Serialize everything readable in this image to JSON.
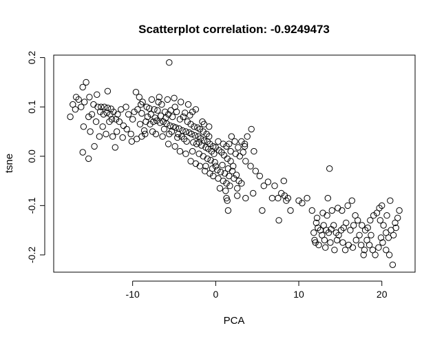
{
  "chart_data": {
    "type": "scatter",
    "title": "Scatterplot correlation: -0.9249473",
    "xlabel": "PCA",
    "ylabel": "tsne",
    "xlim": [
      -19.5,
      24.0
    ],
    "ylim": [
      -0.235,
      0.205
    ],
    "x_ticks": [
      -10,
      0,
      10,
      20
    ],
    "x_tick_labels": [
      "-10",
      "0",
      "10",
      "20"
    ],
    "y_ticks": [
      -0.2,
      -0.1,
      0.0,
      0.1,
      0.2
    ],
    "y_tick_labels": [
      "-0.2",
      "-0.1",
      "0.0",
      "0.1",
      "0.2"
    ],
    "marker": "open-circle",
    "grid": false,
    "legend": "none",
    "points": [
      [
        -5.6,
        0.19
      ],
      [
        -13.0,
        0.132
      ],
      [
        -9.6,
        0.13
      ],
      [
        -15.6,
        0.15
      ],
      [
        -16.0,
        0.14
      ],
      [
        -16.8,
        0.12
      ],
      [
        -15.2,
        0.12
      ],
      [
        -15.8,
        0.11
      ],
      [
        -16.5,
        0.115
      ],
      [
        -14.3,
        0.125
      ],
      [
        -17.2,
        0.105
      ],
      [
        -17.5,
        0.08
      ],
      [
        -16.9,
        0.095
      ],
      [
        -16.2,
        0.1
      ],
      [
        -14.7,
        0.105
      ],
      [
        -14.2,
        0.1
      ],
      [
        -13.8,
        0.1
      ],
      [
        -13.4,
        0.1
      ],
      [
        -13.0,
        0.098
      ],
      [
        -12.6,
        0.096
      ],
      [
        -13.9,
        0.09
      ],
      [
        -13.5,
        0.085
      ],
      [
        -13.1,
        0.088
      ],
      [
        -12.7,
        0.085
      ],
      [
        -12.3,
        0.09
      ],
      [
        -14.9,
        0.085
      ],
      [
        -15.3,
        0.08
      ],
      [
        -14.4,
        0.07
      ],
      [
        -13.6,
        0.06
      ],
      [
        -12.8,
        0.07
      ],
      [
        -12.0,
        0.075
      ],
      [
        -11.6,
        0.07
      ],
      [
        -11.1,
        0.062
      ],
      [
        -10.7,
        0.055
      ],
      [
        -10.2,
        0.045
      ],
      [
        -11.9,
        0.05
      ],
      [
        -12.4,
        0.04
      ],
      [
        -13.2,
        0.045
      ],
      [
        -14.0,
        0.04
      ],
      [
        -15.9,
        0.06
      ],
      [
        -15.1,
        0.05
      ],
      [
        -14.6,
        0.02
      ],
      [
        -15.3,
        -0.005
      ],
      [
        -16.0,
        0.008
      ],
      [
        -12.1,
        0.018
      ],
      [
        -11.2,
        0.038
      ],
      [
        -10.1,
        0.03
      ],
      [
        -9.5,
        0.035
      ],
      [
        -8.9,
        0.04
      ],
      [
        -8.6,
        0.052
      ],
      [
        -9.1,
        0.065
      ],
      [
        -8.4,
        0.07
      ],
      [
        -7.9,
        0.065
      ],
      [
        -7.5,
        0.07
      ],
      [
        -7.1,
        0.072
      ],
      [
        -6.7,
        0.068
      ],
      [
        -6.3,
        0.07
      ],
      [
        -5.9,
        0.066
      ],
      [
        -5.5,
        0.062
      ],
      [
        -5.1,
        0.06
      ],
      [
        -4.8,
        0.058
      ],
      [
        -4.4,
        0.056
      ],
      [
        -4.0,
        0.052
      ],
      [
        -3.6,
        0.05
      ],
      [
        -3.2,
        0.048
      ],
      [
        -2.9,
        0.045
      ],
      [
        -2.5,
        0.042
      ],
      [
        -2.1,
        0.04
      ],
      [
        -1.8,
        0.036
      ],
      [
        -1.4,
        0.032
      ],
      [
        -1.0,
        0.03
      ],
      [
        -0.7,
        0.025
      ],
      [
        -0.3,
        0.02
      ],
      [
        0.0,
        0.018
      ],
      [
        0.4,
        0.012
      ],
      [
        0.7,
        0.008
      ],
      [
        1.0,
        0.002
      ],
      [
        1.4,
        -0.005
      ],
      [
        1.8,
        -0.01
      ],
      [
        2.1,
        -0.02
      ],
      [
        -9.2,
        0.12
      ],
      [
        -8.8,
        0.11
      ],
      [
        -8.3,
        0.1
      ],
      [
        -7.4,
        0.095
      ],
      [
        -6.9,
        0.11
      ],
      [
        -6.5,
        0.105
      ],
      [
        -6.1,
        0.09
      ],
      [
        -5.7,
        0.085
      ],
      [
        -5.2,
        0.08
      ],
      [
        -4.7,
        0.09
      ],
      [
        -4.3,
        0.075
      ],
      [
        -3.9,
        0.08
      ],
      [
        -3.4,
        0.07
      ],
      [
        -3.0,
        0.065
      ],
      [
        -2.6,
        0.06
      ],
      [
        -2.2,
        0.058
      ],
      [
        -1.9,
        0.055
      ],
      [
        -1.5,
        0.05
      ],
      [
        -1.1,
        0.045
      ],
      [
        -0.8,
        0.04
      ],
      [
        -4.9,
        0.1
      ],
      [
        -5.8,
        0.115
      ],
      [
        -4.2,
        0.11
      ],
      [
        -3.3,
        0.105
      ],
      [
        -2.8,
        0.09
      ],
      [
        -2.4,
        0.095
      ],
      [
        -1.6,
        0.07
      ],
      [
        -7.7,
        0.115
      ],
      [
        -6.8,
        0.12
      ],
      [
        -5.0,
        0.118
      ],
      [
        -10.5,
        0.085
      ],
      [
        -10.0,
        0.075
      ],
      [
        -9.8,
        0.09
      ],
      [
        -9.4,
        0.095
      ],
      [
        -8.9,
        0.087
      ],
      [
        -8.2,
        0.08
      ],
      [
        -7.8,
        0.085
      ],
      [
        -7.3,
        0.078
      ],
      [
        -6.6,
        0.082
      ],
      [
        -6.0,
        0.078
      ],
      [
        -11.4,
        0.095
      ],
      [
        -10.8,
        0.1
      ],
      [
        -11.8,
        0.085
      ],
      [
        -12.5,
        0.075
      ],
      [
        -9.0,
        0.105
      ],
      [
        -8.0,
        0.097
      ],
      [
        -7.0,
        0.093
      ],
      [
        -5.4,
        0.093
      ],
      [
        -3.7,
        0.088
      ],
      [
        -3.1,
        0.083
      ],
      [
        -8.5,
        0.045
      ],
      [
        -7.6,
        0.05
      ],
      [
        -7.2,
        0.045
      ],
      [
        -6.4,
        0.04
      ],
      [
        -5.6,
        0.045
      ],
      [
        -4.6,
        0.038
      ],
      [
        -3.8,
        0.035
      ],
      [
        -3.5,
        0.03
      ],
      [
        -2.7,
        0.028
      ],
      [
        -2.3,
        0.025
      ],
      [
        -6.2,
        0.055
      ],
      [
        -5.3,
        0.05
      ],
      [
        -4.5,
        0.045
      ],
      [
        -4.1,
        0.04
      ],
      [
        -2.0,
        0.028
      ],
      [
        -1.7,
        0.022
      ],
      [
        -1.2,
        0.018
      ],
      [
        -0.9,
        0.015
      ],
      [
        -0.5,
        0.01
      ],
      [
        -0.2,
        0.005
      ],
      [
        -5.7,
        0.025
      ],
      [
        -4.9,
        0.02
      ],
      [
        -4.3,
        0.01
      ],
      [
        -3.6,
        0.005
      ],
      [
        -2.8,
        0.01
      ],
      [
        -2.0,
        0.005
      ],
      [
        -1.5,
        0.0
      ],
      [
        -1.0,
        -0.005
      ],
      [
        -0.6,
        -0.008
      ],
      [
        -0.1,
        -0.012
      ],
      [
        -3.0,
        -0.01
      ],
      [
        -2.4,
        -0.015
      ],
      [
        -1.9,
        -0.02
      ],
      [
        -1.2,
        -0.02
      ],
      [
        -0.4,
        -0.025
      ],
      [
        0.2,
        -0.028
      ],
      [
        0.6,
        -0.032
      ],
      [
        1.1,
        -0.035
      ],
      [
        1.6,
        -0.04
      ],
      [
        2.2,
        -0.045
      ],
      [
        -0.3,
        -0.04
      ],
      [
        0.3,
        -0.045
      ],
      [
        0.9,
        -0.05
      ],
      [
        1.3,
        -0.055
      ],
      [
        1.7,
        -0.06
      ],
      [
        0.5,
        -0.065
      ],
      [
        -0.7,
        -0.035
      ],
      [
        -1.3,
        -0.03
      ],
      [
        0.0,
        -0.02
      ],
      [
        0.8,
        -0.018
      ],
      [
        1.5,
        -0.025
      ],
      [
        2.0,
        -0.03
      ],
      [
        2.5,
        -0.038
      ],
      [
        2.8,
        -0.05
      ],
      [
        3.1,
        -0.055
      ],
      [
        2.6,
        -0.065
      ],
      [
        1.2,
        -0.07
      ],
      [
        0.3,
        0.03
      ],
      [
        0.9,
        0.025
      ],
      [
        1.3,
        0.02
      ],
      [
        1.8,
        0.01
      ],
      [
        2.4,
        0.005
      ],
      [
        2.9,
        0.0
      ],
      [
        3.3,
        0.008
      ],
      [
        2.7,
        0.018
      ],
      [
        1.9,
        0.04
      ],
      [
        1.6,
        0.025
      ],
      [
        2.3,
        0.03
      ],
      [
        -0.8,
        0.06
      ],
      [
        -1.4,
        0.065
      ],
      [
        1.4,
        -0.09
      ],
      [
        1.5,
        -0.11
      ],
      [
        1.3,
        -0.085
      ],
      [
        2.6,
        -0.08
      ],
      [
        3.1,
        0.03
      ],
      [
        3.5,
        0.02
      ],
      [
        3.8,
        0.04
      ],
      [
        4.3,
        0.055
      ],
      [
        3.6,
        -0.01
      ],
      [
        4.2,
        -0.02
      ],
      [
        3.5,
        0.025
      ],
      [
        4.6,
        0.01
      ],
      [
        4.8,
        -0.03
      ],
      [
        5.3,
        -0.04
      ],
      [
        5.8,
        -0.06
      ],
      [
        4.5,
        -0.075
      ],
      [
        3.6,
        -0.085
      ],
      [
        6.3,
        -0.052
      ],
      [
        7.1,
        -0.06
      ],
      [
        6.8,
        -0.085
      ],
      [
        7.5,
        -0.085
      ],
      [
        7.9,
        -0.075
      ],
      [
        8.3,
        -0.08
      ],
      [
        8.7,
        -0.085
      ],
      [
        8.2,
        -0.05
      ],
      [
        8.5,
        -0.09
      ],
      [
        9.0,
        -0.11
      ],
      [
        7.6,
        -0.13
      ],
      [
        5.6,
        -0.11
      ],
      [
        10.0,
        -0.09
      ],
      [
        10.4,
        -0.095
      ],
      [
        11.0,
        -0.085
      ],
      [
        11.6,
        -0.11
      ],
      [
        13.7,
        -0.025
      ],
      [
        13.5,
        -0.085
      ],
      [
        12.1,
        -0.135
      ],
      [
        11.8,
        -0.155
      ],
      [
        12.3,
        -0.145
      ],
      [
        12.6,
        -0.15
      ],
      [
        12.8,
        -0.16
      ],
      [
        13.0,
        -0.14
      ],
      [
        13.3,
        -0.15
      ],
      [
        13.6,
        -0.155
      ],
      [
        13.9,
        -0.148
      ],
      [
        14.2,
        -0.14
      ],
      [
        14.5,
        -0.155
      ],
      [
        14.8,
        -0.16
      ],
      [
        15.1,
        -0.15
      ],
      [
        15.4,
        -0.145
      ],
      [
        15.7,
        -0.135
      ],
      [
        12.0,
        -0.175
      ],
      [
        12.4,
        -0.18
      ],
      [
        13.1,
        -0.17
      ],
      [
        13.8,
        -0.175
      ],
      [
        14.6,
        -0.17
      ],
      [
        15.3,
        -0.175
      ],
      [
        16.0,
        -0.18
      ],
      [
        16.5,
        -0.185
      ],
      [
        16.9,
        -0.17
      ],
      [
        17.3,
        -0.16
      ],
      [
        16.2,
        -0.15
      ],
      [
        16.6,
        -0.14
      ],
      [
        17.1,
        -0.13
      ],
      [
        17.6,
        -0.14
      ],
      [
        18.0,
        -0.15
      ],
      [
        18.3,
        -0.145
      ],
      [
        18.6,
        -0.13
      ],
      [
        19.0,
        -0.12
      ],
      [
        19.4,
        -0.115
      ],
      [
        19.8,
        -0.13
      ],
      [
        20.2,
        -0.14
      ],
      [
        20.5,
        -0.155
      ],
      [
        20.8,
        -0.165
      ],
      [
        21.1,
        -0.15
      ],
      [
        21.4,
        -0.16
      ],
      [
        21.7,
        -0.145
      ],
      [
        22.1,
        -0.11
      ],
      [
        20.0,
        -0.1
      ],
      [
        20.6,
        -0.12
      ],
      [
        21.0,
        -0.09
      ],
      [
        18.2,
        -0.17
      ],
      [
        18.5,
        -0.18
      ],
      [
        18.9,
        -0.19
      ],
      [
        19.2,
        -0.2
      ],
      [
        19.6,
        -0.185
      ],
      [
        20.1,
        -0.175
      ],
      [
        20.5,
        -0.19
      ],
      [
        20.9,
        -0.2
      ],
      [
        21.3,
        -0.22
      ],
      [
        18.7,
        -0.16
      ],
      [
        17.9,
        -0.19
      ],
      [
        17.5,
        -0.18
      ],
      [
        16.8,
        -0.12
      ],
      [
        15.9,
        -0.1
      ],
      [
        15.2,
        -0.11
      ],
      [
        14.7,
        -0.105
      ],
      [
        14.0,
        -0.11
      ],
      [
        13.4,
        -0.12
      ],
      [
        12.9,
        -0.115
      ],
      [
        12.2,
        -0.125
      ],
      [
        16.4,
        -0.09
      ],
      [
        19.7,
        -0.105
      ],
      [
        21.6,
        -0.135
      ],
      [
        17.8,
        -0.2
      ],
      [
        15.6,
        -0.19
      ],
      [
        14.3,
        -0.19
      ],
      [
        13.2,
        -0.185
      ],
      [
        11.9,
        -0.17
      ],
      [
        19.9,
        -0.165
      ],
      [
        21.9,
        -0.125
      ]
    ]
  }
}
